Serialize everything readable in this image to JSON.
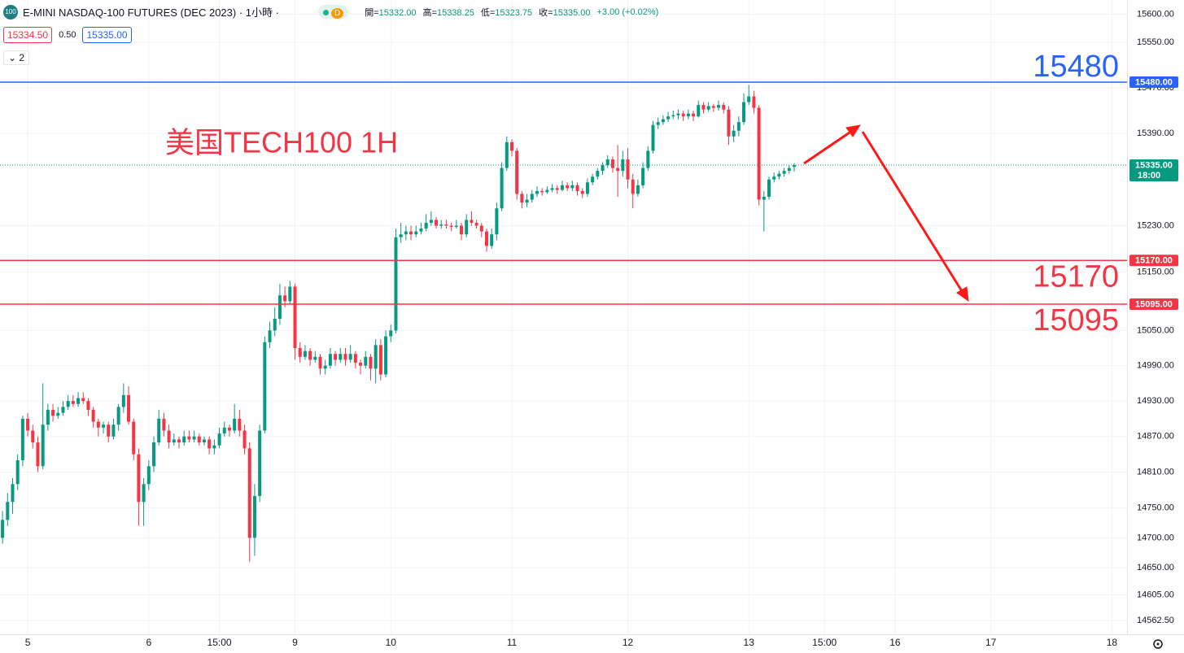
{
  "header": {
    "symbol_icon": "100",
    "title": "E-MINI NASDAQ-100 FUTURES (DEC 2023) · 1小時 ·",
    "badge": "D",
    "ohlc": [
      {
        "label": "開=",
        "value": "15332.00"
      },
      {
        "label": "高=",
        "value": "15338.25"
      },
      {
        "label": "低=",
        "value": "15323.75"
      },
      {
        "label": "收=",
        "value": "15335.00"
      }
    ],
    "change": "+3.00 (+0.02%)",
    "bid": "15334.50",
    "spread": "0.50",
    "ask": "15335.00",
    "indicator_count": "2"
  },
  "chart_data": {
    "type": "candlestick",
    "annotation": "美国TECH100 1H",
    "log_scale": true,
    "grid": true,
    "up_color": "#089981",
    "down_color": "#f23645",
    "ylim": [
      14540,
      15625
    ],
    "yticks": [
      {
        "value": 15600,
        "label": "15600.00"
      },
      {
        "value": 15550,
        "label": "15550.00"
      },
      {
        "value": 15470,
        "label": "15470.00"
      },
      {
        "value": 15390,
        "label": "15390.00"
      },
      {
        "value": 15230,
        "label": "15230.00"
      },
      {
        "value": 15150,
        "label": "15150.00"
      },
      {
        "value": 15050,
        "label": "15050.00"
      },
      {
        "value": 14990,
        "label": "14990.00"
      },
      {
        "value": 14930,
        "label": "14930.00"
      },
      {
        "value": 14870,
        "label": "14870.00"
      },
      {
        "value": 14810,
        "label": "14810.00"
      },
      {
        "value": 14750,
        "label": "14750.00"
      },
      {
        "value": 14700,
        "label": "14700.00"
      },
      {
        "value": 14650,
        "label": "14650.00"
      },
      {
        "value": 14605,
        "label": "14605.00"
      },
      {
        "value": 14562.5,
        "label": "14562.50"
      }
    ],
    "xlim": [
      -0.5,
      223
    ],
    "xticks": [
      {
        "value": 5,
        "label": "5"
      },
      {
        "value": 29,
        "label": "6"
      },
      {
        "value": 43,
        "label": "15:00"
      },
      {
        "value": 58,
        "label": "9"
      },
      {
        "value": 77,
        "label": "10"
      },
      {
        "value": 101,
        "label": "11"
      },
      {
        "value": 124,
        "label": "12"
      },
      {
        "value": 148,
        "label": "13"
      },
      {
        "value": 163,
        "label": "15:00"
      },
      {
        "value": 177,
        "label": "16"
      },
      {
        "value": 196,
        "label": "17"
      },
      {
        "value": 220,
        "label": "18"
      }
    ],
    "hlines": [
      {
        "value": 15480,
        "label": "15480",
        "axis_label": "15480.00",
        "color": "#2962ff"
      },
      {
        "value": 15170,
        "label": "15170",
        "axis_label": "15170.00",
        "color": "#f23645"
      },
      {
        "value": 15095,
        "label": "15095",
        "axis_label": "15095.00",
        "color": "#f23645"
      }
    ],
    "last_price": {
      "value": 15335,
      "label": "15335.00",
      "time": "18:00",
      "color": "#089981"
    },
    "candles": [
      [
        14700,
        14745,
        14690,
        14730
      ],
      [
        14730,
        14775,
        14720,
        14760
      ],
      [
        14760,
        14800,
        14740,
        14790
      ],
      [
        14790,
        14840,
        14780,
        14830
      ],
      [
        14830,
        14905,
        14820,
        14900
      ],
      [
        14900,
        14910,
        14870,
        14880
      ],
      [
        14880,
        14890,
        14850,
        14860
      ],
      [
        14860,
        14870,
        14810,
        14820
      ],
      [
        14820,
        14960,
        14815,
        14890
      ],
      [
        14890,
        14925,
        14880,
        14915
      ],
      [
        14915,
        14925,
        14895,
        14905
      ],
      [
        14905,
        14920,
        14900,
        14910
      ],
      [
        14910,
        14930,
        14905,
        14920
      ],
      [
        14920,
        14940,
        14915,
        14930
      ],
      [
        14930,
        14940,
        14920,
        14925
      ],
      [
        14925,
        14945,
        14920,
        14935
      ],
      [
        14935,
        14945,
        14925,
        14930
      ],
      [
        14930,
        14935,
        14905,
        14915
      ],
      [
        14915,
        14920,
        14885,
        14895
      ],
      [
        14895,
        14900,
        14870,
        14885
      ],
      [
        14885,
        14895,
        14875,
        14890
      ],
      [
        14890,
        14895,
        14860,
        14870
      ],
      [
        14870,
        14900,
        14865,
        14890
      ],
      [
        14890,
        14925,
        14880,
        14920
      ],
      [
        14920,
        14960,
        14910,
        14940
      ],
      [
        14940,
        14955,
        14890,
        14895
      ],
      [
        14895,
        14900,
        14830,
        14840
      ],
      [
        14840,
        14850,
        14720,
        14760
      ],
      [
        14760,
        14800,
        14720,
        14790
      ],
      [
        14790,
        14830,
        14780,
        14820
      ],
      [
        14820,
        14870,
        14810,
        14860
      ],
      [
        14860,
        14915,
        14855,
        14900
      ],
      [
        14900,
        14910,
        14870,
        14880
      ],
      [
        14880,
        14890,
        14850,
        14860
      ],
      [
        14860,
        14875,
        14855,
        14865
      ],
      [
        14865,
        14870,
        14850,
        14860
      ],
      [
        14860,
        14880,
        14855,
        14870
      ],
      [
        14870,
        14880,
        14860,
        14865
      ],
      [
        14865,
        14880,
        14860,
        14870
      ],
      [
        14870,
        14875,
        14855,
        14860
      ],
      [
        14860,
        14870,
        14855,
        14865
      ],
      [
        14865,
        14870,
        14840,
        14850
      ],
      [
        14850,
        14865,
        14840,
        14855
      ],
      [
        14855,
        14885,
        14850,
        14875
      ],
      [
        14875,
        14895,
        14870,
        14885
      ],
      [
        14885,
        14890,
        14870,
        14880
      ],
      [
        14880,
        14925,
        14875,
        14900
      ],
      [
        14900,
        14915,
        14870,
        14880
      ],
      [
        14880,
        14890,
        14840,
        14850
      ],
      [
        14850,
        14860,
        14660,
        14700
      ],
      [
        14700,
        14790,
        14670,
        14770
      ],
      [
        14770,
        14890,
        14760,
        14880
      ],
      [
        14880,
        15040,
        14875,
        15030
      ],
      [
        15030,
        15065,
        15020,
        15050
      ],
      [
        15050,
        15090,
        15040,
        15070
      ],
      [
        15070,
        15130,
        15060,
        15110
      ],
      [
        15110,
        15125,
        15090,
        15100
      ],
      [
        15100,
        15135,
        15095,
        15125
      ],
      [
        15125,
        15130,
        15000,
        15020
      ],
      [
        15020,
        15030,
        14995,
        15005
      ],
      [
        15005,
        15025,
        15000,
        15015
      ],
      [
        15015,
        15020,
        14990,
        15000
      ],
      [
        15000,
        15015,
        14995,
        15005
      ],
      [
        15005,
        15010,
        14975,
        14985
      ],
      [
        14985,
        15000,
        14975,
        14990
      ],
      [
        14990,
        15020,
        14985,
        15010
      ],
      [
        15010,
        15015,
        14990,
        15000
      ],
      [
        15000,
        15020,
        14995,
        15010
      ],
      [
        15010,
        15020,
        14990,
        15000
      ],
      [
        15000,
        15025,
        14995,
        15010
      ],
      [
        15010,
        15015,
        14985,
        14995
      ],
      [
        14995,
        15000,
        14975,
        14990
      ],
      [
        14990,
        15015,
        14985,
        15005
      ],
      [
        15005,
        15010,
        14965,
        14985
      ],
      [
        14985,
        15035,
        14960,
        15025
      ],
      [
        15025,
        15035,
        14965,
        14975
      ],
      [
        14975,
        15050,
        14970,
        15040
      ],
      [
        15040,
        15060,
        15030,
        15050
      ],
      [
        15050,
        15225,
        15045,
        15210
      ],
      [
        15210,
        15235,
        15200,
        15215
      ],
      [
        15215,
        15230,
        15205,
        15220
      ],
      [
        15220,
        15230,
        15205,
        15215
      ],
      [
        15215,
        15230,
        15210,
        15220
      ],
      [
        15220,
        15235,
        15215,
        15225
      ],
      [
        15225,
        15250,
        15220,
        15235
      ],
      [
        15235,
        15255,
        15230,
        15240
      ],
      [
        15240,
        15245,
        15225,
        15230
      ],
      [
        15230,
        15240,
        15225,
        15232
      ],
      [
        15232,
        15240,
        15225,
        15230
      ],
      [
        15230,
        15235,
        15220,
        15228
      ],
      [
        15228,
        15240,
        15225,
        15230
      ],
      [
        15230,
        15235,
        15205,
        15215
      ],
      [
        15215,
        15250,
        15210,
        15240
      ],
      [
        15240,
        15255,
        15230,
        15235
      ],
      [
        15235,
        15240,
        15225,
        15230
      ],
      [
        15230,
        15235,
        15210,
        15220
      ],
      [
        15220,
        15225,
        15185,
        15195
      ],
      [
        15195,
        15225,
        15190,
        15215
      ],
      [
        15215,
        15270,
        15205,
        15260
      ],
      [
        15260,
        15340,
        15255,
        15330
      ],
      [
        15330,
        15385,
        15325,
        15375
      ],
      [
        15375,
        15380,
        15350,
        15360
      ],
      [
        15360,
        15365,
        15275,
        15285
      ],
      [
        15285,
        15290,
        15260,
        15270
      ],
      [
        15270,
        15285,
        15262,
        15275
      ],
      [
        15275,
        15292,
        15270,
        15285
      ],
      [
        15285,
        15298,
        15280,
        15290
      ],
      [
        15290,
        15295,
        15282,
        15288
      ],
      [
        15288,
        15298,
        15285,
        15292
      ],
      [
        15292,
        15302,
        15288,
        15295
      ],
      [
        15295,
        15300,
        15285,
        15292
      ],
      [
        15292,
        15308,
        15290,
        15300
      ],
      [
        15300,
        15305,
        15290,
        15295
      ],
      [
        15295,
        15308,
        15290,
        15300
      ],
      [
        15300,
        15305,
        15282,
        15290
      ],
      [
        15290,
        15295,
        15278,
        15285
      ],
      [
        15285,
        15312,
        15280,
        15305
      ],
      [
        15305,
        15320,
        15300,
        15315
      ],
      [
        15315,
        15330,
        15310,
        15325
      ],
      [
        15325,
        15340,
        15318,
        15335
      ],
      [
        15335,
        15352,
        15330,
        15345
      ],
      [
        15345,
        15350,
        15322,
        15330
      ],
      [
        15330,
        15370,
        15280,
        15325
      ],
      [
        15325,
        15360,
        15315,
        15345
      ],
      [
        15345,
        15365,
        15295,
        15310
      ],
      [
        15310,
        15320,
        15260,
        15285
      ],
      [
        15285,
        15310,
        15280,
        15300
      ],
      [
        15300,
        15340,
        15295,
        15330
      ],
      [
        15330,
        15368,
        15325,
        15360
      ],
      [
        15360,
        15412,
        15355,
        15405
      ],
      [
        15405,
        15418,
        15398,
        15410
      ],
      [
        15410,
        15422,
        15405,
        15415
      ],
      [
        15415,
        15428,
        15410,
        15420
      ],
      [
        15420,
        15430,
        15415,
        15422
      ],
      [
        15422,
        15432,
        15415,
        15425
      ],
      [
        15425,
        15430,
        15412,
        15420
      ],
      [
        15420,
        15432,
        15415,
        15425
      ],
      [
        15425,
        15430,
        15412,
        15420
      ],
      [
        15420,
        15448,
        15418,
        15440
      ],
      [
        15440,
        15445,
        15425,
        15432
      ],
      [
        15432,
        15445,
        15428,
        15438
      ],
      [
        15438,
        15442,
        15428,
        15435
      ],
      [
        15435,
        15448,
        15430,
        15440
      ],
      [
        15440,
        15445,
        15425,
        15432
      ],
      [
        15432,
        15438,
        15370,
        15385
      ],
      [
        15385,
        15405,
        15375,
        15395
      ],
      [
        15395,
        15420,
        15385,
        15410
      ],
      [
        15410,
        15460,
        15405,
        15445
      ],
      [
        15445,
        15475,
        15440,
        15455
      ],
      [
        15455,
        15465,
        15425,
        15435
      ],
      [
        15435,
        15440,
        15265,
        15275
      ],
      [
        15275,
        15290,
        15220,
        15280
      ],
      [
        15280,
        15315,
        15275,
        15310
      ],
      [
        15310,
        15322,
        15305,
        15315
      ],
      [
        15315,
        15325,
        15310,
        15320
      ],
      [
        15320,
        15330,
        15315,
        15325
      ],
      [
        15325,
        15335,
        15320,
        15330
      ],
      [
        15332,
        15338.25,
        15323.75,
        15335
      ]
    ]
  }
}
